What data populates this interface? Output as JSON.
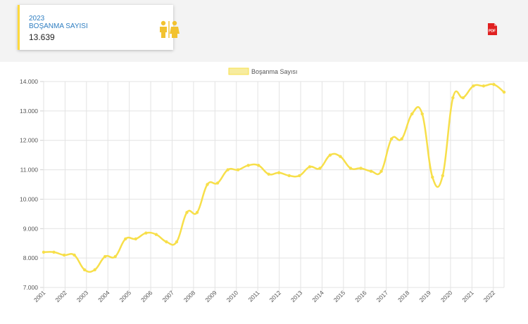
{
  "card": {
    "year": "2023",
    "label": "BOŞANMA SAYISI",
    "value": "13.639",
    "icon": "people-icon",
    "accent": "#ffd93d"
  },
  "pdf_button": {
    "icon": "pdf-icon",
    "text": "PDF",
    "color": "#e02020"
  },
  "chart_data": {
    "type": "line",
    "legend": {
      "label": "Boşanma Sayısı",
      "placement": "top-center"
    },
    "series": [
      {
        "name": "Boşanma Sayısı",
        "color": "#f7df4a",
        "values": [
          8200,
          8200,
          8100,
          8100,
          7600,
          7600,
          8050,
          8050,
          8650,
          8650,
          8850,
          8800,
          8550,
          8550,
          9550,
          9550,
          10500,
          10550,
          11000,
          11000,
          11150,
          11150,
          10850,
          10900,
          10800,
          10800,
          11100,
          11050,
          11500,
          11450,
          11050,
          11050,
          10950,
          10950,
          12050,
          12050,
          12900,
          12900,
          10750,
          10800,
          13450,
          13450,
          13850,
          13850,
          13900,
          13639
        ]
      }
    ],
    "x_tick_labels": [
      "2001",
      "2002",
      "2003",
      "2004",
      "2005",
      "2006",
      "2007",
      "2008",
      "2009",
      "2010",
      "2011",
      "2012",
      "2013",
      "2014",
      "2015",
      "2016",
      "2017",
      "2018",
      "2019",
      "2020",
      "2021",
      "2022"
    ],
    "y_ticks": [
      "7.000",
      "8.000",
      "9.000",
      "10.000",
      "11.000",
      "12.000",
      "13.000",
      "14.000"
    ],
    "ylim": [
      7000,
      14000
    ],
    "grid": true,
    "xlabel": "",
    "ylabel": ""
  }
}
